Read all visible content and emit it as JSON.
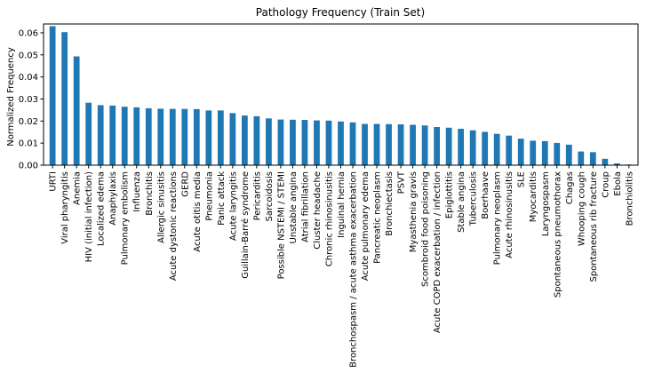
{
  "chart_data": {
    "type": "bar",
    "title": "Pathology Frequency (Train Set)",
    "xlabel": "",
    "ylabel": "Normalized Frequency",
    "ylim": [
      0,
      0.064
    ],
    "yticks": [
      "0.00",
      "0.01",
      "0.02",
      "0.03",
      "0.04",
      "0.05",
      "0.06"
    ],
    "bar_color": "#1f77b4",
    "grid": false,
    "legend": "none",
    "categories": [
      "URTI",
      "Viral pharyngitis",
      "Anemia",
      "HIV (initial infection)",
      "Localized edema",
      "Anaphylaxis",
      "Pulmonary embolism",
      "Influenza",
      "Bronchitis",
      "Allergic sinusitis",
      "Acute dystonic reactions",
      "GERD",
      "Acute otitis media",
      "Pneumonia",
      "Panic attack",
      "Acute laryngitis",
      "Guillain-Barré syndrome",
      "Pericarditis",
      "Sarcoidosis",
      "Possible NSTEMI / STEMI",
      "Unstable angina",
      "Atrial fibrillation",
      "Cluster headache",
      "Chronic rhinosinusitis",
      "Inguinal hernia",
      "Bronchospasm / acute asthma exacerbation",
      "Acute pulmonary edema",
      "Pancreatic neoplasm",
      "Bronchiectasis",
      "PSVT",
      "Myasthenia gravis",
      "Scombroid food poisoning",
      "Acute COPD exacerbation / infection",
      "Epiglottitis",
      "Stable angina",
      "Tuberculosis",
      "Boerhaave",
      "Pulmonary neoplasm",
      "Acute rhinosinusitis",
      "SLE",
      "Myocarditis",
      "Laryngospasm",
      "Spontaneous pneumothorax",
      "Chagas",
      "Whooping cough",
      "Spontaneous rib fracture",
      "Croup",
      "Ebola",
      "Bronchiolitis"
    ],
    "values": [
      0.063,
      0.0603,
      0.0493,
      0.0283,
      0.0272,
      0.027,
      0.0265,
      0.0262,
      0.0258,
      0.0256,
      0.0255,
      0.0255,
      0.0254,
      0.0248,
      0.0248,
      0.0236,
      0.0225,
      0.0222,
      0.0212,
      0.0207,
      0.0206,
      0.0205,
      0.0203,
      0.0202,
      0.0198,
      0.0194,
      0.0187,
      0.0187,
      0.0186,
      0.0185,
      0.0183,
      0.018,
      0.0173,
      0.017,
      0.0165,
      0.0158,
      0.0151,
      0.0142,
      0.0134,
      0.012,
      0.0111,
      0.0109,
      0.0101,
      0.0093,
      0.0062,
      0.0059,
      0.0029,
      0.0008,
      0.0003
    ]
  }
}
